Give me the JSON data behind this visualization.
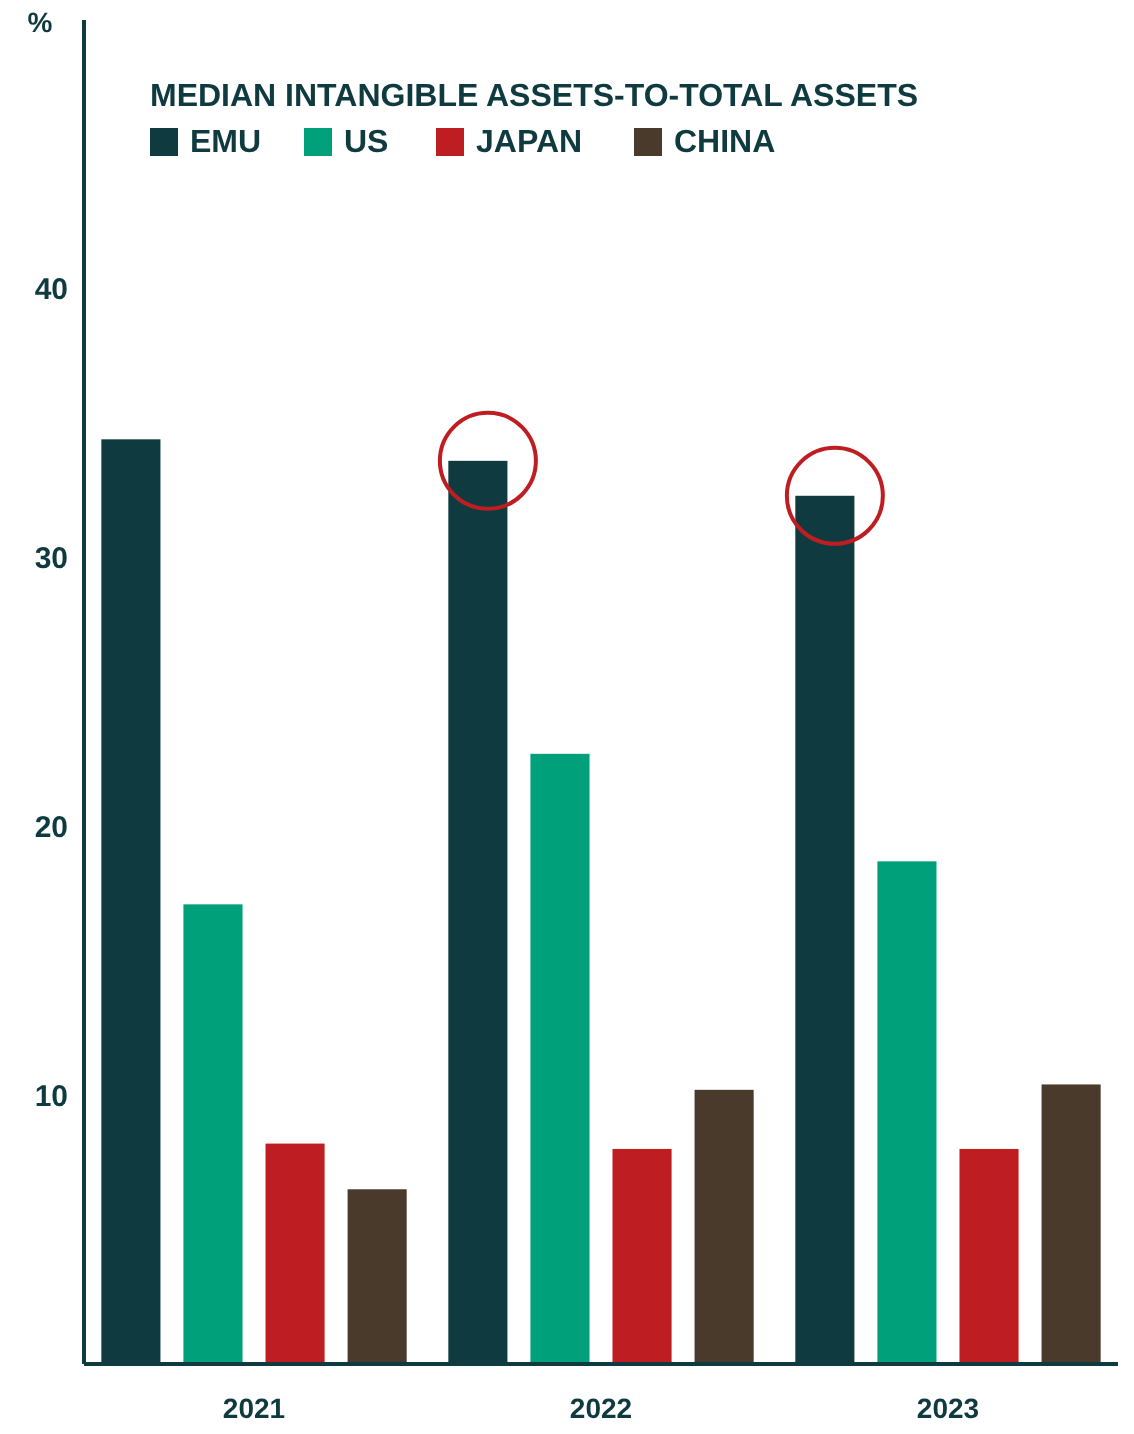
{
  "chart_data": {
    "type": "bar",
    "title": "MEDIAN INTANGIBLE ASSETS-TO-TOTAL ASSETS",
    "ylabel": "%",
    "categories": [
      "2021",
      "2022",
      "2023"
    ],
    "series": [
      {
        "name": "EMU",
        "color": "#0f3a40",
        "values": [
          34.4,
          33.6,
          32.3
        ]
      },
      {
        "name": "US",
        "color": "#00a07a",
        "values": [
          17.1,
          22.7,
          18.7
        ]
      },
      {
        "name": "JAPAN",
        "color": "#be1e22",
        "values": [
          8.2,
          8.0,
          8.0
        ]
      },
      {
        "name": "CHINA",
        "color": "#4a3a2c",
        "values": [
          6.5,
          10.2,
          10.4
        ]
      }
    ],
    "ylim": [
      0,
      50
    ],
    "yticks": [
      10,
      20,
      30,
      40
    ],
    "grid": false,
    "legend": "top left"
  }
}
